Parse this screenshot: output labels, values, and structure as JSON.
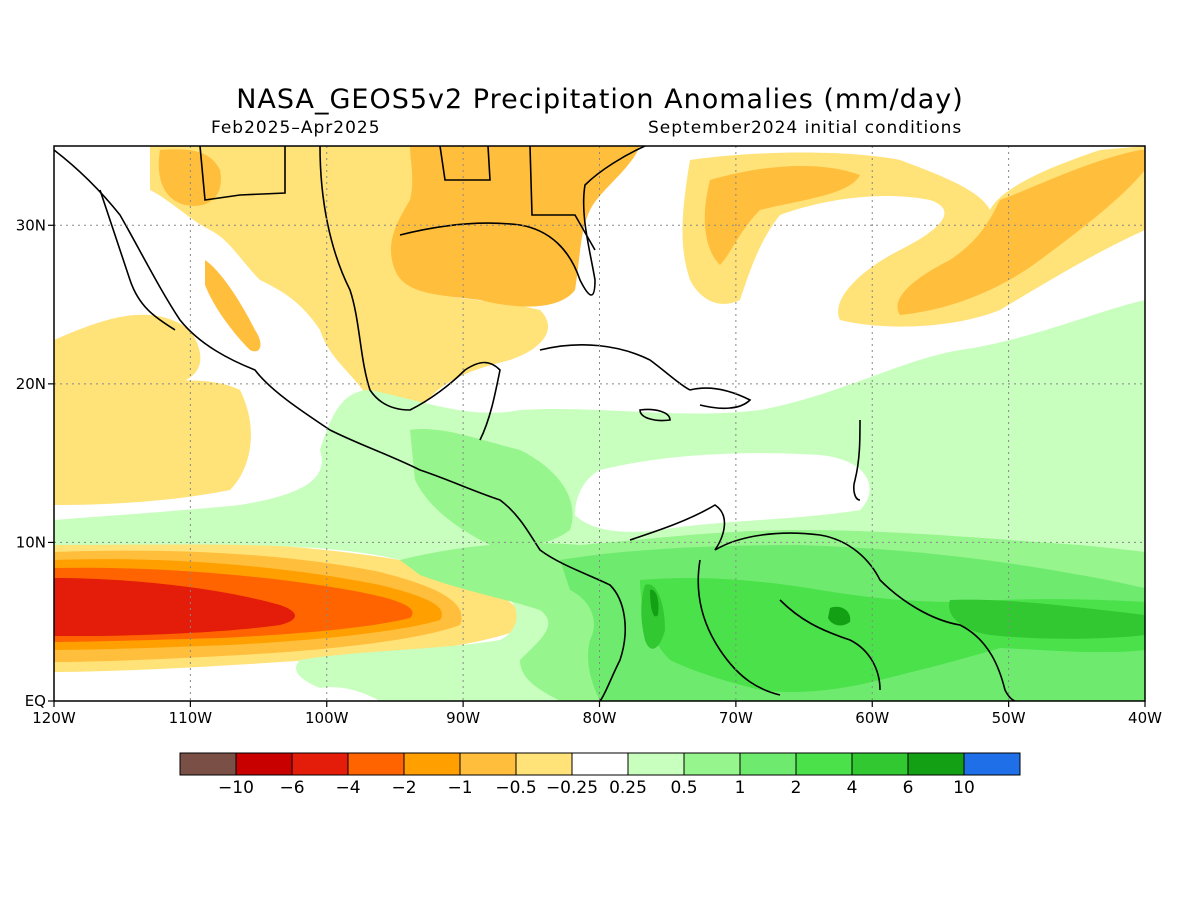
{
  "title": "NASA_GEOS5v2 Precipitation Anomalies (mm/day)",
  "subtitle_left": "Feb2025–Apr2025",
  "subtitle_right": "September2024 initial conditions",
  "map": {
    "lon_range": [
      -120,
      -40
    ],
    "lat_range": [
      0,
      35
    ],
    "x_ticks": [
      {
        "lon": -120,
        "label": "120W"
      },
      {
        "lon": -110,
        "label": "110W"
      },
      {
        "lon": -100,
        "label": "100W"
      },
      {
        "lon": -90,
        "label": "90W"
      },
      {
        "lon": -80,
        "label": "80W"
      },
      {
        "lon": -70,
        "label": "70W"
      },
      {
        "lon": -60,
        "label": "60W"
      },
      {
        "lon": -50,
        "label": "50W"
      },
      {
        "lon": -40,
        "label": "40W"
      }
    ],
    "y_ticks": [
      {
        "lat": 0,
        "label": "EQ"
      },
      {
        "lat": 10,
        "label": "10N"
      },
      {
        "lat": 20,
        "label": "20N"
      },
      {
        "lat": 30,
        "label": "30N"
      }
    ]
  },
  "colorbar": {
    "colors": [
      "#7a5046",
      "#c80000",
      "#e41c0a",
      "#ff6400",
      "#ffa000",
      "#ffbe3c",
      "#ffe278",
      "#ffffff",
      "#c8ffbe",
      "#96f58c",
      "#6eeb6e",
      "#4ae14a",
      "#32c832",
      "#14a014",
      "#1f6fe8"
    ],
    "labels": [
      "−10",
      "−6",
      "−4",
      "−2",
      "−1",
      "−0.5",
      "−0.25",
      "0.25",
      "0.5",
      "1",
      "2",
      "4",
      "6",
      "10"
    ]
  },
  "anomaly_palette": {
    "dry_light": "#ffe278",
    "dry_mid": "#ffbe3c",
    "dry_strong": "#ffa000",
    "dry_heavy": "#ff6400",
    "dry_extreme": "#e41c0a",
    "wet_light": "#c8ffbe",
    "wet_mid": "#96f58c",
    "wet_strong": "#6eeb6e",
    "wet_heavy": "#4ae14a",
    "wet_extreme": "#32c832",
    "wet_max": "#14a014"
  }
}
